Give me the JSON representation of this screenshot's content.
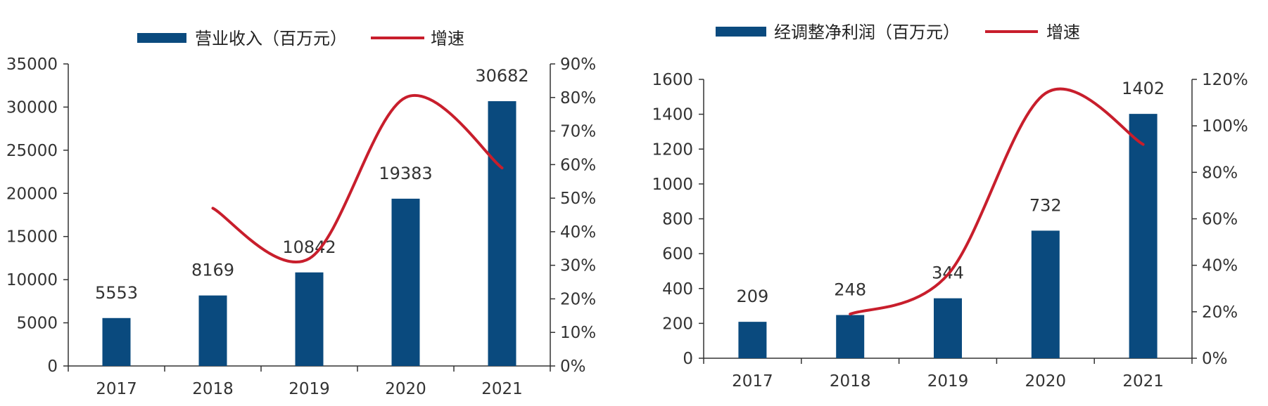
{
  "colors": {
    "bar": "#0a4a7e",
    "line": "#c81e2c",
    "axis": "#333333"
  },
  "chart_data": [
    {
      "type": "bar",
      "categories": [
        "2017",
        "2018",
        "2019",
        "2020",
        "2021"
      ],
      "series": [
        {
          "name": "营业收入（百万元）",
          "type": "bar",
          "axis": "left",
          "values": [
            5553,
            8169,
            10842,
            19383,
            30682
          ]
        },
        {
          "name": "增速",
          "type": "line",
          "axis": "right",
          "values": [
            null,
            47,
            32,
            80,
            59
          ]
        }
      ],
      "data_labels": [
        "5553",
        "8169",
        "10842",
        "19383",
        "30682"
      ],
      "ylim": [
        0,
        35000
      ],
      "yticks": [
        "0",
        "5000",
        "10000",
        "15000",
        "20000",
        "25000",
        "30000",
        "35000"
      ],
      "y2lim": [
        0,
        90
      ],
      "y2ticks": [
        "0%",
        "10%",
        "20%",
        "30%",
        "40%",
        "50%",
        "60%",
        "70%",
        "80%",
        "90%"
      ],
      "legend": "top-center",
      "grid": false
    },
    {
      "type": "bar",
      "categories": [
        "2017",
        "2018",
        "2019",
        "2020",
        "2021"
      ],
      "series": [
        {
          "name": "经调整净利润（百万元）",
          "type": "bar",
          "axis": "left",
          "values": [
            209,
            248,
            344,
            732,
            1402
          ]
        },
        {
          "name": "增速",
          "type": "line",
          "axis": "right",
          "values": [
            null,
            19,
            36,
            114,
            92
          ]
        }
      ],
      "data_labels": [
        "209",
        "248",
        "344",
        "732",
        "1402"
      ],
      "ylim": [
        0,
        1600
      ],
      "yticks": [
        "0",
        "200",
        "400",
        "600",
        "800",
        "1000",
        "1200",
        "1400",
        "1600"
      ],
      "y2lim": [
        0,
        120
      ],
      "y2ticks": [
        "0%",
        "20%",
        "40%",
        "60%",
        "80%",
        "100%",
        "120%"
      ],
      "legend": "top-center",
      "grid": false
    }
  ]
}
